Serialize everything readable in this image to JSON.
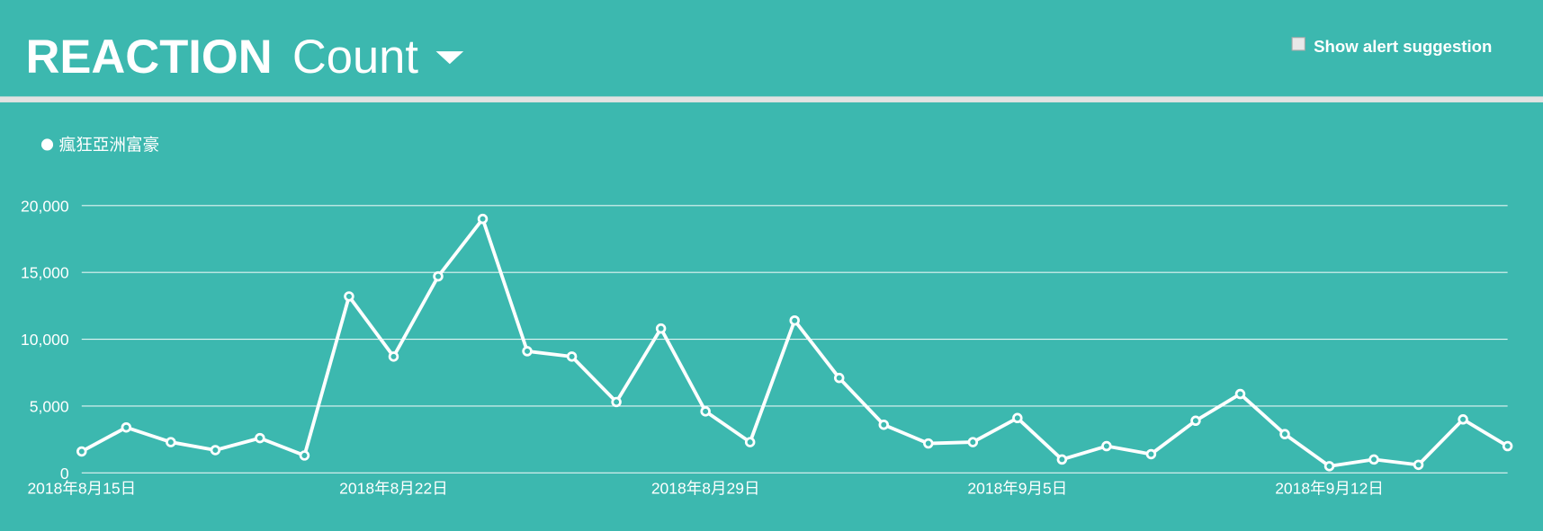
{
  "header": {
    "title_bold": "REACTION",
    "title_rest": "Count",
    "checkbox_label": "Show alert suggestion"
  },
  "chart_data": {
    "type": "line",
    "x": [
      "2018-08-15",
      "2018-08-16",
      "2018-08-17",
      "2018-08-18",
      "2018-08-19",
      "2018-08-20",
      "2018-08-21",
      "2018-08-22",
      "2018-08-23",
      "2018-08-24",
      "2018-08-25",
      "2018-08-26",
      "2018-08-27",
      "2018-08-28",
      "2018-08-29",
      "2018-08-30",
      "2018-08-31",
      "2018-09-01",
      "2018-09-02",
      "2018-09-03",
      "2018-09-04",
      "2018-09-05",
      "2018-09-06",
      "2018-09-07",
      "2018-09-08",
      "2018-09-09",
      "2018-09-10",
      "2018-09-11",
      "2018-09-12",
      "2018-09-13",
      "2018-09-14",
      "2018-09-15",
      "2018-09-16"
    ],
    "series": [
      {
        "name": "瘋狂亞洲富豪",
        "color": "#ffffff",
        "values": [
          1600,
          3400,
          2300,
          1700,
          2600,
          1300,
          13200,
          8700,
          14700,
          19000,
          9100,
          8700,
          5300,
          10800,
          4600,
          2300,
          11400,
          7100,
          3600,
          2200,
          2300,
          4100,
          1000,
          2000,
          1400,
          3900,
          5900,
          2900,
          500,
          1000,
          600,
          4000,
          2000
        ]
      }
    ],
    "xlim": [
      "2018-08-15",
      "2018-09-16"
    ],
    "xticks": [
      {
        "value": "2018-08-15",
        "label": "2018年8月15日"
      },
      {
        "value": "2018-08-22",
        "label": "2018年8月22日"
      },
      {
        "value": "2018-08-29",
        "label": "2018年8月29日"
      },
      {
        "value": "2018-09-05",
        "label": "2018年9月5日"
      },
      {
        "value": "2018-09-12",
        "label": "2018年9月12日"
      }
    ],
    "ylim": [
      0,
      20000
    ],
    "yticks": [
      0,
      {
        "value": 5000,
        "label": "5,000"
      },
      {
        "value": 10000,
        "label": "10,000"
      },
      {
        "value": 15000,
        "label": "15,000"
      },
      {
        "value": 20000,
        "label": "20,000"
      }
    ],
    "grid": true
  }
}
